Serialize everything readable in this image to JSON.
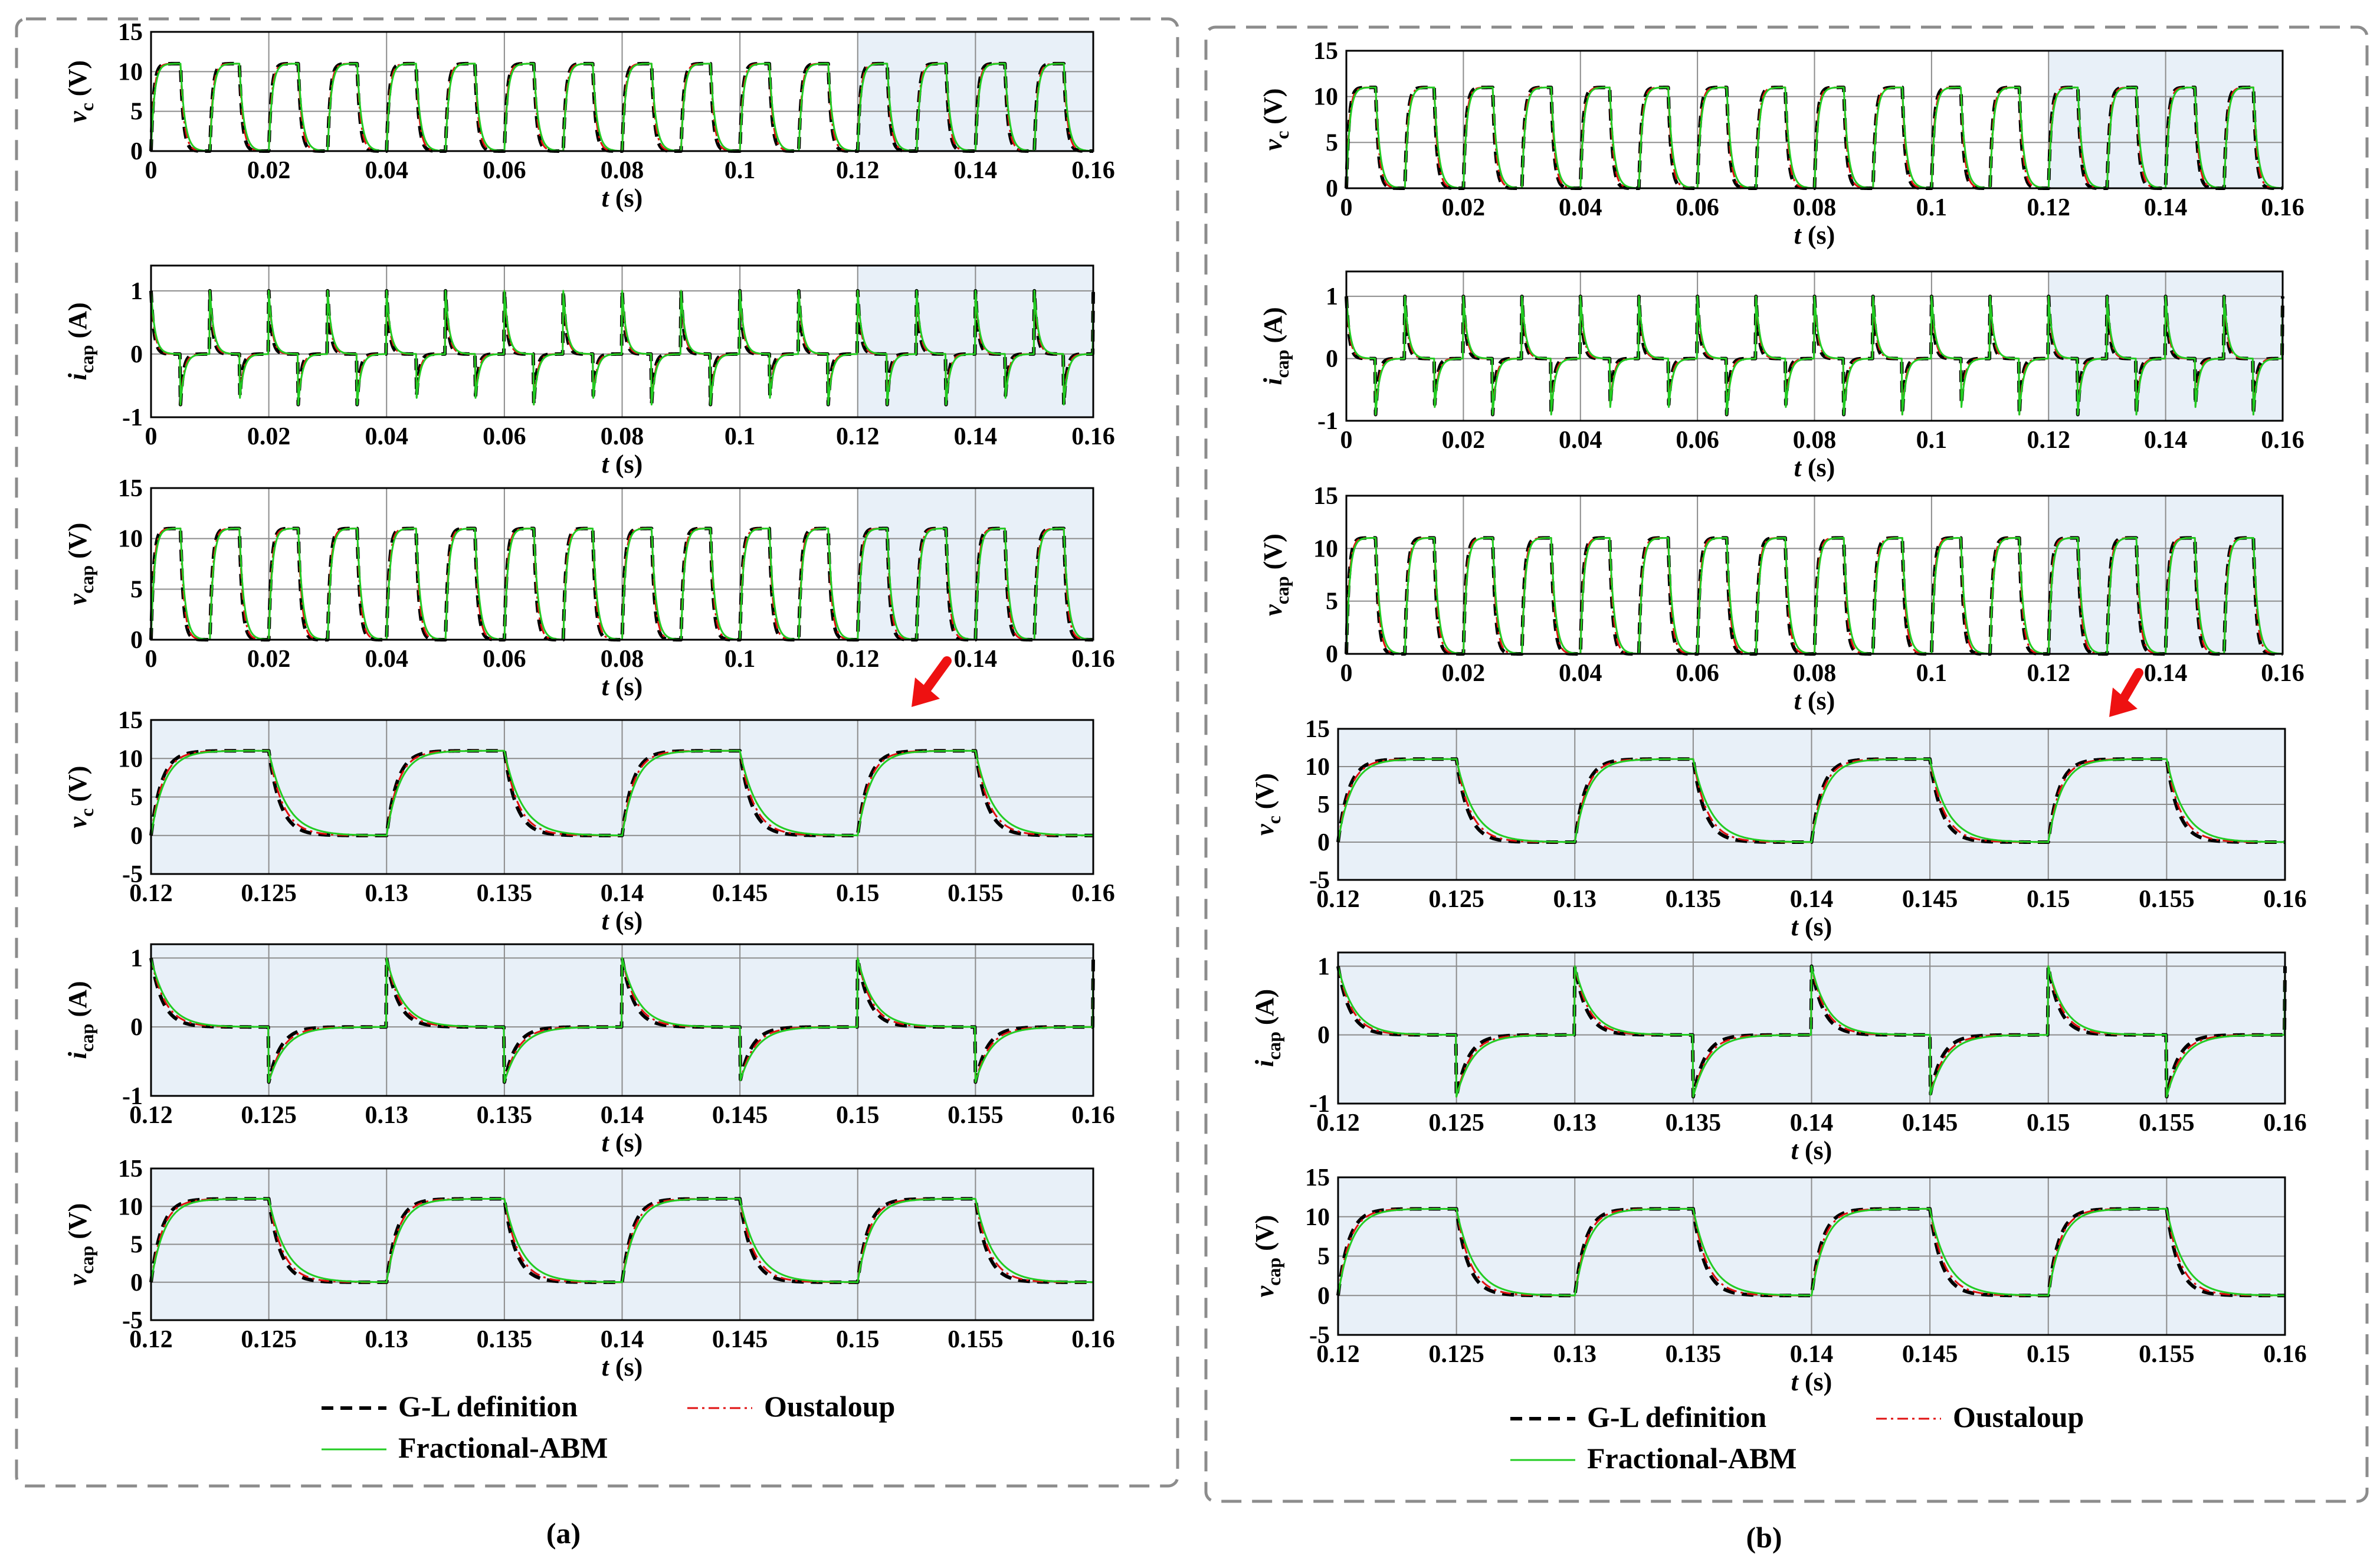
{
  "figure": {
    "panels": [
      {
        "label": "(a)",
        "legend": [
          {
            "name": "G-L definition",
            "color": "#000000",
            "style": "dashed"
          },
          {
            "name": "Oustaloup",
            "color": "#e01010",
            "style": "dashdot"
          },
          {
            "name": "Fractional-ABM",
            "color": "#22cc22",
            "style": "solid"
          }
        ]
      },
      {
        "label": "(b)",
        "legend": [
          {
            "name": "G-L definition",
            "color": "#000000",
            "style": "dashed"
          },
          {
            "name": "Oustaloup",
            "color": "#e01010",
            "style": "dashdot"
          },
          {
            "name": "Fractional-ABM",
            "color": "#22cc22",
            "style": "solid"
          }
        ]
      }
    ],
    "colors": {
      "highlight": "#e8f0f8",
      "arrow": "#ee1111",
      "frame": "#8c8c8c",
      "grid": "#8c8c8c"
    }
  },
  "chart_data": [
    {
      "type": "line",
      "panel": "(a)",
      "ylabel": "v_c (V)",
      "xlabel": "t (s)",
      "xlim": [
        0,
        0.16
      ],
      "ylim": [
        0,
        15
      ],
      "xticks": [
        "0",
        "0.02",
        "0.04",
        "0.06",
        "0.08",
        "0.1",
        "0.12",
        "0.14",
        "0.16"
      ],
      "yticks": [
        "0",
        "5",
        "10",
        "15"
      ],
      "highlight": [
        0.12,
        0.16
      ],
      "signal": "voltage",
      "period": 0.01,
      "duty": 0.5,
      "high": 11,
      "low": 0,
      "grid": true,
      "series": [
        {
          "name": "G-L definition"
        },
        {
          "name": "Oustaloup"
        },
        {
          "name": "Fractional-ABM"
        }
      ]
    },
    {
      "type": "line",
      "panel": "(a)",
      "ylabel": "i_cap (A)",
      "xlabel": "t (s)",
      "xlim": [
        0,
        0.16
      ],
      "ylim": [
        -1,
        1.4
      ],
      "xticks": [
        "0",
        "0.02",
        "0.04",
        "0.06",
        "0.08",
        "0.1",
        "0.12",
        "0.14",
        "0.16"
      ],
      "yticks": [
        "-1",
        "0",
        "1"
      ],
      "highlight": [
        0.12,
        0.16
      ],
      "signal": "current",
      "period": 0.01,
      "duty": 0.5,
      "peak": 1,
      "trough": -0.8,
      "grid": true,
      "series": [
        {
          "name": "G-L definition"
        },
        {
          "name": "Oustaloup"
        },
        {
          "name": "Fractional-ABM"
        }
      ]
    },
    {
      "type": "line",
      "panel": "(a)",
      "ylabel": "v_cap (V)",
      "xlabel": "t (s)",
      "xlim": [
        0,
        0.16
      ],
      "ylim": [
        0,
        15
      ],
      "xticks": [
        "0",
        "0.02",
        "0.04",
        "0.06",
        "0.08",
        "0.1",
        "0.12",
        "0.14",
        "0.16"
      ],
      "yticks": [
        "0",
        "5",
        "10",
        "15"
      ],
      "highlight": [
        0.12,
        0.16
      ],
      "signal": "voltage",
      "period": 0.01,
      "duty": 0.5,
      "high": 11,
      "low": 0,
      "grid": true,
      "series": [
        {
          "name": "G-L definition"
        },
        {
          "name": "Oustaloup"
        },
        {
          "name": "Fractional-ABM"
        }
      ]
    },
    {
      "type": "line",
      "panel": "(a)",
      "ylabel": "v_c (V)",
      "xlabel": "t (s)",
      "xlim": [
        0.12,
        0.16
      ],
      "ylim": [
        -5,
        15
      ],
      "xticks": [
        "0.12",
        "0.125",
        "0.13",
        "0.135",
        "0.14",
        "0.145",
        "0.15",
        "0.155",
        "0.16"
      ],
      "yticks": [
        "-5",
        "0",
        "5",
        "10",
        "15"
      ],
      "highlight": [
        0.12,
        0.16
      ],
      "signal": "voltage",
      "period": 0.01,
      "duty": 0.5,
      "high": 11,
      "low": 0,
      "grid": true,
      "series": [
        {
          "name": "G-L definition"
        },
        {
          "name": "Oustaloup"
        },
        {
          "name": "Fractional-ABM"
        }
      ]
    },
    {
      "type": "line",
      "panel": "(a)",
      "ylabel": "i_cap (A)",
      "xlabel": "t (s)",
      "xlim": [
        0.12,
        0.16
      ],
      "ylim": [
        -1,
        1.2
      ],
      "xticks": [
        "0.12",
        "0.125",
        "0.13",
        "0.135",
        "0.14",
        "0.145",
        "0.15",
        "0.155",
        "0.16"
      ],
      "yticks": [
        "-1",
        "0",
        "1"
      ],
      "highlight": [
        0.12,
        0.16
      ],
      "signal": "current",
      "period": 0.01,
      "duty": 0.5,
      "peak": 1,
      "trough": -0.8,
      "grid": true,
      "series": [
        {
          "name": "G-L definition"
        },
        {
          "name": "Oustaloup"
        },
        {
          "name": "Fractional-ABM"
        }
      ]
    },
    {
      "type": "line",
      "panel": "(a)",
      "ylabel": "v_cap (V)",
      "xlabel": "t (s)",
      "xlim": [
        0.12,
        0.16
      ],
      "ylim": [
        -5,
        15
      ],
      "xticks": [
        "0.12",
        "0.125",
        "0.13",
        "0.135",
        "0.14",
        "0.145",
        "0.15",
        "0.155",
        "0.16"
      ],
      "yticks": [
        "-5",
        "0",
        "5",
        "10",
        "15"
      ],
      "highlight": [
        0.12,
        0.16
      ],
      "signal": "voltage",
      "period": 0.01,
      "duty": 0.5,
      "high": 11,
      "low": 0,
      "grid": true,
      "series": [
        {
          "name": "G-L definition"
        },
        {
          "name": "Oustaloup"
        },
        {
          "name": "Fractional-ABM"
        }
      ]
    },
    {
      "type": "line",
      "panel": "(b)",
      "ylabel": "v_c (V)",
      "xlabel": "t (s)",
      "xlim": [
        0,
        0.16
      ],
      "ylim": [
        0,
        15
      ],
      "xticks": [
        "0",
        "0.02",
        "0.04",
        "0.06",
        "0.08",
        "0.1",
        "0.12",
        "0.14",
        "0.16"
      ],
      "yticks": [
        "0",
        "5",
        "10",
        "15"
      ],
      "highlight": [
        0.12,
        0.16
      ],
      "signal": "voltage",
      "period": 0.01,
      "duty": 0.5,
      "high": 11,
      "low": 0,
      "grid": true,
      "series": [
        {
          "name": "G-L definition"
        },
        {
          "name": "Oustaloup"
        },
        {
          "name": "Fractional-ABM"
        }
      ]
    },
    {
      "type": "line",
      "panel": "(b)",
      "ylabel": "i_cap (A)",
      "xlabel": "t (s)",
      "xlim": [
        0,
        0.16
      ],
      "ylim": [
        -1,
        1.4
      ],
      "xticks": [
        "0",
        "0.02",
        "0.04",
        "0.06",
        "0.08",
        "0.1",
        "0.12",
        "0.14",
        "0.16"
      ],
      "yticks": [
        "-1",
        "0",
        "1"
      ],
      "highlight": [
        0.12,
        0.16
      ],
      "signal": "current",
      "period": 0.01,
      "duty": 0.5,
      "peak": 1,
      "trough": -0.9,
      "grid": true,
      "series": [
        {
          "name": "G-L definition"
        },
        {
          "name": "Oustaloup"
        },
        {
          "name": "Fractional-ABM"
        }
      ]
    },
    {
      "type": "line",
      "panel": "(b)",
      "ylabel": "v_cap (V)",
      "xlabel": "t (s)",
      "xlim": [
        0,
        0.16
      ],
      "ylim": [
        0,
        15
      ],
      "xticks": [
        "0",
        "0.02",
        "0.04",
        "0.06",
        "0.08",
        "0.1",
        "0.12",
        "0.14",
        "0.16"
      ],
      "yticks": [
        "0",
        "5",
        "10",
        "15"
      ],
      "highlight": [
        0.12,
        0.16
      ],
      "signal": "voltage",
      "period": 0.01,
      "duty": 0.5,
      "high": 11,
      "low": 0,
      "grid": true,
      "series": [
        {
          "name": "G-L definition"
        },
        {
          "name": "Oustaloup"
        },
        {
          "name": "Fractional-ABM"
        }
      ]
    },
    {
      "type": "line",
      "panel": "(b)",
      "ylabel": "v_c (V)",
      "xlabel": "t (s)",
      "xlim": [
        0.12,
        0.16
      ],
      "ylim": [
        -5,
        15
      ],
      "xticks": [
        "0.12",
        "0.125",
        "0.13",
        "0.135",
        "0.14",
        "0.145",
        "0.15",
        "0.155",
        "0.16"
      ],
      "yticks": [
        "-5",
        "0",
        "5",
        "10",
        "15"
      ],
      "highlight": [
        0.12,
        0.16
      ],
      "signal": "voltage",
      "period": 0.01,
      "duty": 0.5,
      "high": 11,
      "low": 0,
      "grid": true,
      "series": [
        {
          "name": "G-L definition"
        },
        {
          "name": "Oustaloup"
        },
        {
          "name": "Fractional-ABM"
        }
      ]
    },
    {
      "type": "line",
      "panel": "(b)",
      "ylabel": "i_cap (A)",
      "xlabel": "t (s)",
      "xlim": [
        0.12,
        0.16
      ],
      "ylim": [
        -1,
        1.2
      ],
      "xticks": [
        "0.12",
        "0.125",
        "0.13",
        "0.135",
        "0.14",
        "0.145",
        "0.15",
        "0.155",
        "0.16"
      ],
      "yticks": [
        "-1",
        "0",
        "1"
      ],
      "highlight": [
        0.12,
        0.16
      ],
      "signal": "current",
      "period": 0.01,
      "duty": 0.5,
      "peak": 1,
      "trough": -0.9,
      "grid": true,
      "series": [
        {
          "name": "G-L definition"
        },
        {
          "name": "Oustaloup"
        },
        {
          "name": "Fractional-ABM"
        }
      ]
    },
    {
      "type": "line",
      "panel": "(b)",
      "ylabel": "v_cap (V)",
      "xlabel": "t (s)",
      "xlim": [
        0.12,
        0.16
      ],
      "ylim": [
        -5,
        15
      ],
      "xticks": [
        "0.12",
        "0.125",
        "0.13",
        "0.135",
        "0.14",
        "0.145",
        "0.15",
        "0.155",
        "0.16"
      ],
      "yticks": [
        "-5",
        "0",
        "5",
        "10",
        "15"
      ],
      "highlight": [
        0.12,
        0.16
      ],
      "signal": "voltage",
      "period": 0.01,
      "duty": 0.5,
      "high": 11,
      "low": 0,
      "grid": true,
      "series": [
        {
          "name": "G-L definition"
        },
        {
          "name": "Oustaloup"
        },
        {
          "name": "Fractional-ABM"
        }
      ]
    }
  ]
}
